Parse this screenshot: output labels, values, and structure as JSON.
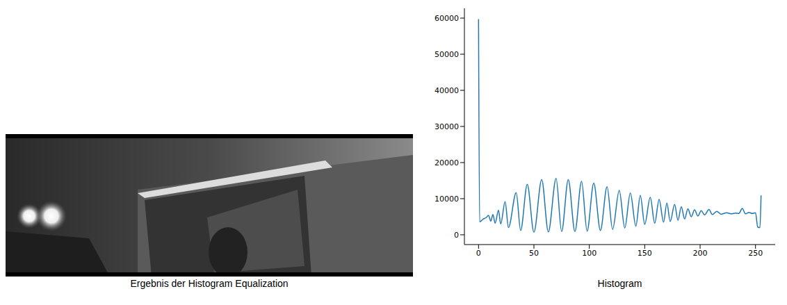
{
  "image": {
    "caption": "Ergebnis der Histogram Equalization"
  },
  "chart_data": {
    "type": "line",
    "title": "Histogram",
    "x": [
      0,
      1,
      4,
      7,
      9,
      11,
      13,
      15,
      18,
      20,
      24,
      27,
      34,
      38,
      44,
      50,
      57,
      63,
      70,
      75,
      81,
      87,
      93,
      98,
      104,
      110,
      116,
      121,
      127,
      132,
      137,
      142,
      146,
      150,
      155,
      159,
      163,
      167,
      170,
      173,
      177,
      180,
      183,
      186,
      189,
      192,
      195,
      198,
      201,
      204,
      208,
      211,
      215,
      219,
      224,
      228,
      232,
      235,
      238,
      241,
      244,
      247,
      250,
      252,
      254,
      255
    ],
    "values": [
      59700,
      3600,
      4300,
      4800,
      5400,
      3800,
      5600,
      3200,
      6800,
      3000,
      9200,
      2000,
      11700,
      1200,
      14000,
      700,
      15300,
      800,
      15600,
      900,
      15300,
      900,
      14800,
      1000,
      14300,
      1200,
      13300,
      1500,
      12300,
      1900,
      11600,
      2400,
      10900,
      2900,
      10400,
      3200,
      9800,
      3500,
      8800,
      3700,
      8400,
      4000,
      7800,
      4400,
      7200,
      5000,
      6900,
      5200,
      6700,
      5500,
      7000,
      5600,
      6500,
      5700,
      6100,
      5800,
      6000,
      5900,
      7300,
      5800,
      6200,
      5900,
      6100,
      2100,
      2000,
      10900
    ],
    "color": "#1f77b4",
    "xlim": [
      -12.75,
      267.75
    ],
    "ylim": [
      -2700,
      62700
    ],
    "xticks": [
      0,
      50,
      100,
      150,
      200,
      250
    ],
    "yticks": [
      0,
      10000,
      20000,
      30000,
      40000,
      50000,
      60000
    ],
    "grid": false
  }
}
